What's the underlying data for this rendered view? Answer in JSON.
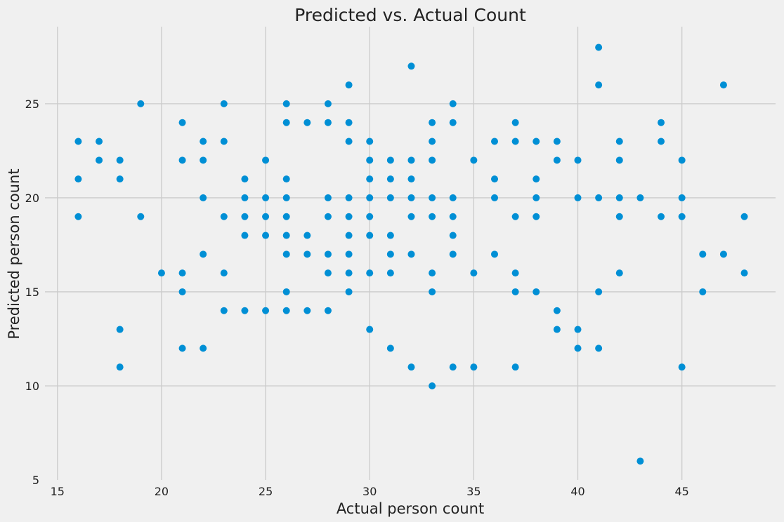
{
  "chart_data": {
    "type": "scatter",
    "title": "Predicted vs. Actual Count",
    "xlabel": "Actual person count",
    "ylabel": "Predicted person count",
    "xlim": [
      14.4,
      49.5
    ],
    "ylim": [
      5,
      29.1
    ],
    "xticks": [
      15,
      20,
      25,
      30,
      35,
      40,
      45
    ],
    "yticks": [
      5,
      10,
      15,
      20,
      25
    ],
    "grid": true,
    "marker_color": "#008fd5",
    "background": "#f0f0f0",
    "grid_color": "#cbcbcb",
    "points": [
      [
        16,
        23
      ],
      [
        16,
        21
      ],
      [
        16,
        19
      ],
      [
        17,
        23
      ],
      [
        17,
        22
      ],
      [
        18,
        22
      ],
      [
        18,
        21
      ],
      [
        18,
        13
      ],
      [
        18,
        11
      ],
      [
        19,
        25
      ],
      [
        19,
        19
      ],
      [
        20,
        16
      ],
      [
        21,
        24
      ],
      [
        21,
        22
      ],
      [
        21,
        16
      ],
      [
        21,
        15
      ],
      [
        21,
        12
      ],
      [
        22,
        23
      ],
      [
        22,
        22
      ],
      [
        22,
        20
      ],
      [
        22,
        17
      ],
      [
        22,
        12
      ],
      [
        23,
        25
      ],
      [
        23,
        23
      ],
      [
        23,
        19
      ],
      [
        23,
        16
      ],
      [
        23,
        14
      ],
      [
        24,
        21
      ],
      [
        24,
        20
      ],
      [
        24,
        19
      ],
      [
        24,
        18
      ],
      [
        24,
        14
      ],
      [
        25,
        22
      ],
      [
        25,
        20
      ],
      [
        25,
        19
      ],
      [
        25,
        18
      ],
      [
        25,
        14
      ],
      [
        26,
        25
      ],
      [
        26,
        24
      ],
      [
        26,
        21
      ],
      [
        26,
        20
      ],
      [
        26,
        19
      ],
      [
        26,
        18
      ],
      [
        26,
        17
      ],
      [
        26,
        15
      ],
      [
        26,
        14
      ],
      [
        27,
        24
      ],
      [
        27,
        18
      ],
      [
        27,
        17
      ],
      [
        27,
        14
      ],
      [
        28,
        25
      ],
      [
        28,
        24
      ],
      [
        28,
        20
      ],
      [
        28,
        19
      ],
      [
        28,
        17
      ],
      [
        28,
        16
      ],
      [
        28,
        14
      ],
      [
        29,
        26
      ],
      [
        29,
        24
      ],
      [
        29,
        23
      ],
      [
        29,
        20
      ],
      [
        29,
        19
      ],
      [
        29,
        18
      ],
      [
        29,
        17
      ],
      [
        29,
        16
      ],
      [
        29,
        15
      ],
      [
        30,
        23
      ],
      [
        30,
        22
      ],
      [
        30,
        21
      ],
      [
        30,
        20
      ],
      [
        30,
        19
      ],
      [
        30,
        18
      ],
      [
        30,
        16
      ],
      [
        30,
        13
      ],
      [
        31,
        22
      ],
      [
        31,
        21
      ],
      [
        31,
        20
      ],
      [
        31,
        18
      ],
      [
        31,
        17
      ],
      [
        31,
        16
      ],
      [
        31,
        12
      ],
      [
        32,
        27
      ],
      [
        32,
        22
      ],
      [
        32,
        21
      ],
      [
        32,
        20
      ],
      [
        32,
        19
      ],
      [
        32,
        17
      ],
      [
        32,
        11
      ],
      [
        33,
        24
      ],
      [
        33,
        23
      ],
      [
        33,
        22
      ],
      [
        33,
        20
      ],
      [
        33,
        19
      ],
      [
        33,
        16
      ],
      [
        33,
        15
      ],
      [
        33,
        10
      ],
      [
        34,
        25
      ],
      [
        34,
        24
      ],
      [
        34,
        20
      ],
      [
        34,
        19
      ],
      [
        34,
        18
      ],
      [
        34,
        17
      ],
      [
        34,
        11
      ],
      [
        35,
        22
      ],
      [
        35,
        16
      ],
      [
        35,
        11
      ],
      [
        36,
        23
      ],
      [
        36,
        21
      ],
      [
        36,
        20
      ],
      [
        36,
        17
      ],
      [
        37,
        24
      ],
      [
        37,
        23
      ],
      [
        37,
        19
      ],
      [
        37,
        16
      ],
      [
        37,
        15
      ],
      [
        37,
        11
      ],
      [
        38,
        23
      ],
      [
        38,
        21
      ],
      [
        38,
        20
      ],
      [
        38,
        19
      ],
      [
        38,
        15
      ],
      [
        39,
        23
      ],
      [
        39,
        22
      ],
      [
        39,
        14
      ],
      [
        39,
        13
      ],
      [
        40,
        22
      ],
      [
        40,
        20
      ],
      [
        40,
        13
      ],
      [
        40,
        12
      ],
      [
        41,
        28
      ],
      [
        41,
        26
      ],
      [
        41,
        20
      ],
      [
        41,
        15
      ],
      [
        41,
        12
      ],
      [
        42,
        23
      ],
      [
        42,
        22
      ],
      [
        42,
        20
      ],
      [
        42,
        19
      ],
      [
        42,
        16
      ],
      [
        43,
        20
      ],
      [
        43,
        6
      ],
      [
        44,
        24
      ],
      [
        44,
        23
      ],
      [
        44,
        19
      ],
      [
        45,
        22
      ],
      [
        45,
        20
      ],
      [
        45,
        19
      ],
      [
        45,
        11
      ],
      [
        46,
        17
      ],
      [
        46,
        15
      ],
      [
        47,
        26
      ],
      [
        47,
        17
      ],
      [
        48,
        19
      ],
      [
        48,
        16
      ]
    ]
  }
}
